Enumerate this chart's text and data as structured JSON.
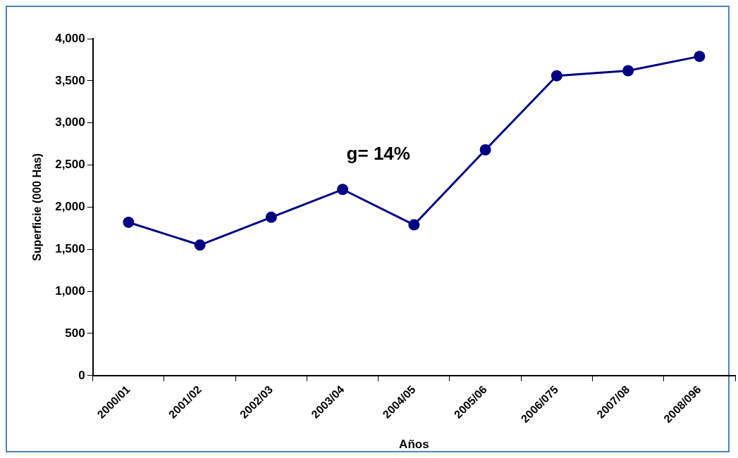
{
  "chart_data": {
    "type": "line",
    "xlabel": "Años",
    "ylabel": "Superficie (000 Has)",
    "categories": [
      "2000/01",
      "2001/02",
      "2002/03",
      "2003/04",
      "2004/05",
      "2005/06",
      "2006/075",
      "2007/08",
      "2008/096"
    ],
    "series": [
      {
        "color": "#000080",
        "values": [
          1820,
          1550,
          1880,
          2210,
          1790,
          2680,
          3560,
          3620,
          3790
        ]
      }
    ],
    "ylim": [
      0,
      4000
    ],
    "yticks": [
      0,
      500,
      {
        "value": 1000,
        "label": "1,000"
      },
      {
        "value": 1500,
        "label": "1,500"
      },
      {
        "value": 2000,
        "label": "2,000"
      },
      {
        "value": 2500,
        "label": "2,500"
      },
      {
        "value": 3000,
        "label": "3,000"
      },
      {
        "value": 3500,
        "label": "3,500"
      },
      {
        "value": 4000,
        "label": "4,000"
      }
    ],
    "annotations": [
      "g= 14%"
    ],
    "grid": false,
    "legend": false,
    "marker": "circle",
    "line_style": "solid"
  }
}
